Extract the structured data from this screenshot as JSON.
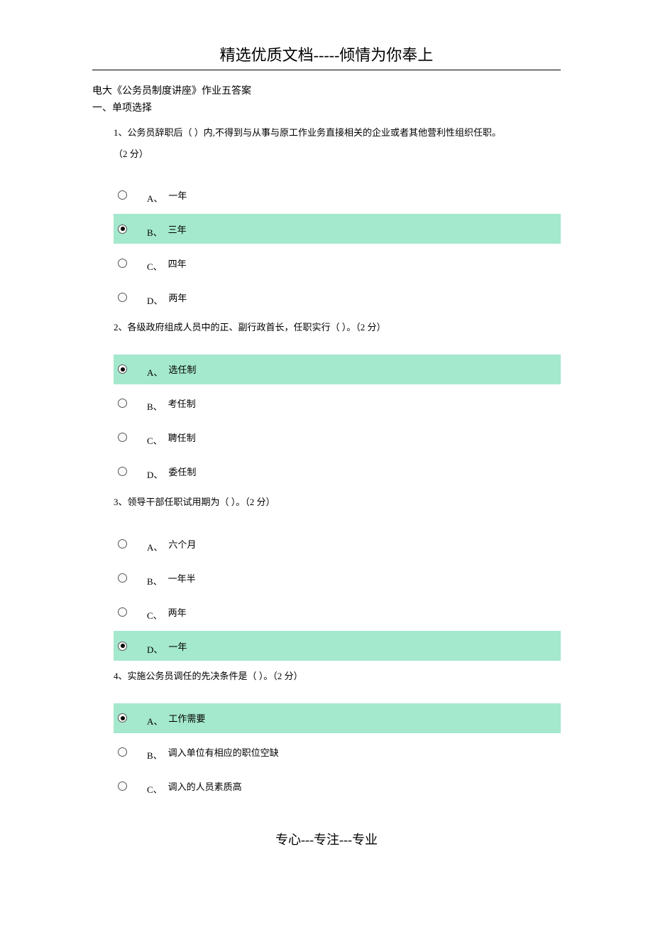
{
  "header": {
    "title": "精选优质文档-----倾情为你奉上"
  },
  "docTitle": "电大《公务员制度讲座》作业五答案",
  "sectionTitle": "一、单项选择",
  "footer": "专心---专注---专业",
  "colors": {
    "highlight": "#a4e8cd",
    "background": "#ffffff",
    "text": "#000000"
  },
  "questions": [
    {
      "number": "1、",
      "text": "公务员辞职后（  ）内,不得到与从事与原工作业务直接相关的企业或者其他营利性组织任职。",
      "points": "（2 分）",
      "pointsOnNewLine": true,
      "options": [
        {
          "letter": "A、",
          "text": "一年",
          "selected": false,
          "correct": false
        },
        {
          "letter": "B、",
          "text": "三年",
          "selected": true,
          "correct": true
        },
        {
          "letter": "C、",
          "text": "四年",
          "selected": false,
          "correct": false
        },
        {
          "letter": "D、",
          "text": "两年",
          "selected": false,
          "correct": false
        }
      ]
    },
    {
      "number": "2、",
      "text": "各级政府组成人员中的正、副行政首长，任职实行（  ）。（2 分）",
      "pointsOnNewLine": false,
      "options": [
        {
          "letter": "A、",
          "text": "选任制",
          "selected": true,
          "correct": true
        },
        {
          "letter": "B、",
          "text": "考任制",
          "selected": false,
          "correct": false
        },
        {
          "letter": "C、",
          "text": "聘任制",
          "selected": false,
          "correct": false
        },
        {
          "letter": "D、",
          "text": "委任制",
          "selected": false,
          "correct": false
        }
      ]
    },
    {
      "number": "3、",
      "text": "领导干部任职试用期为（  ）。（2 分）",
      "pointsOnNewLine": false,
      "options": [
        {
          "letter": "A、",
          "text": "六个月",
          "selected": false,
          "correct": false
        },
        {
          "letter": "B、",
          "text": "一年半",
          "selected": false,
          "correct": false
        },
        {
          "letter": "C、",
          "text": "两年",
          "selected": false,
          "correct": false
        },
        {
          "letter": "D、",
          "text": "一年",
          "selected": true,
          "correct": true
        }
      ]
    },
    {
      "number": "4、",
      "text": "实施公务员调任的先决条件是（  ）。（2 分）",
      "pointsOnNewLine": false,
      "options": [
        {
          "letter": "A、",
          "text": "工作需要",
          "selected": true,
          "correct": true
        },
        {
          "letter": "B、",
          "text": "调入单位有相应的职位空缺",
          "selected": false,
          "correct": false
        },
        {
          "letter": "C、",
          "text": "调入的人员素质高",
          "selected": false,
          "correct": false
        }
      ]
    }
  ]
}
